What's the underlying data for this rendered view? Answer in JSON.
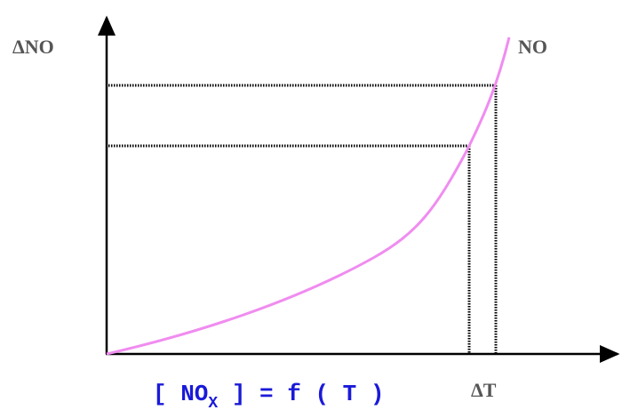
{
  "diagram": {
    "y_axis_label": "ΔNO",
    "x_axis_label": "ΔT",
    "curve_label": "NO",
    "formula": {
      "open": "[ NO",
      "subscript": "X",
      "close": " ] = f ( T )"
    },
    "colors": {
      "curve": "#f08cf0",
      "axes": "#000000",
      "guides": "#000000",
      "formula": "#1a1ad8",
      "labels": "#555555"
    }
  }
}
